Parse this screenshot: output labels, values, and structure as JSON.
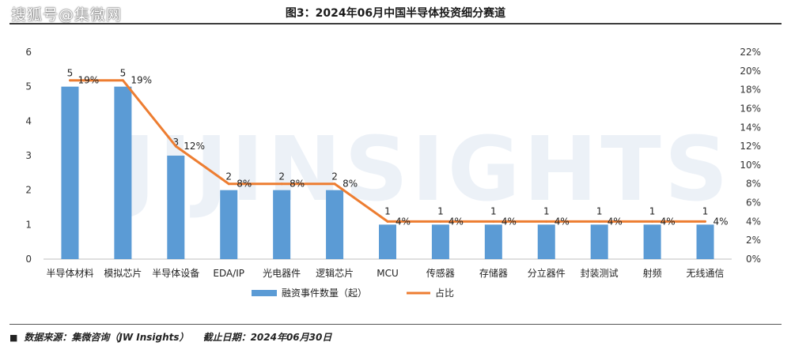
{
  "header": {
    "watermark": "搜狐号@集微网",
    "title": "图3：2024年06月中国半导体投资细分赛道"
  },
  "background_watermark": "JIJINSIGHTS",
  "chart_data": {
    "type": "bar+line",
    "categories": [
      "半导体材料",
      "模拟芯片",
      "半导体设备",
      "EDA/IP",
      "光电器件",
      "逻辑芯片",
      "MCU",
      "传感器",
      "存储器",
      "分立器件",
      "封装测试",
      "射频",
      "无线通信"
    ],
    "series": [
      {
        "name": "融资事件数量（起）",
        "type": "bar",
        "axis": "left",
        "color": "#5b9bd5",
        "values": [
          5,
          5,
          3,
          2,
          2,
          2,
          1,
          1,
          1,
          1,
          1,
          1,
          1
        ]
      },
      {
        "name": "占比",
        "type": "line",
        "axis": "right",
        "color": "#ed7d31",
        "values": [
          19,
          19,
          12,
          8,
          8,
          8,
          4,
          4,
          4,
          4,
          4,
          4,
          4
        ]
      }
    ],
    "bar_labels": [
      "5",
      "5",
      "3",
      "2",
      "2",
      "2",
      "1",
      "1",
      "1",
      "1",
      "1",
      "1",
      "1"
    ],
    "line_labels": [
      "19%",
      "19%",
      "12%",
      "8%",
      "8%",
      "8%",
      "4%",
      "4%",
      "4%",
      "4%",
      "4%",
      "4%",
      "4%"
    ],
    "y_left": {
      "ticks": [
        "0",
        "1",
        "2",
        "3",
        "4",
        "5",
        "6"
      ],
      "min": 0,
      "max": 6
    },
    "y_right": {
      "ticks": [
        "0%",
        "2%",
        "4%",
        "6%",
        "8%",
        "10%",
        "12%",
        "14%",
        "16%",
        "18%",
        "20%",
        "22%"
      ],
      "min": 0,
      "max": 22
    },
    "legend": [
      "融资事件数量（起）",
      "占比"
    ],
    "legend_position": "bottom"
  },
  "footer": {
    "bullet": "■",
    "source": "数据来源：集微咨询（JW Insights）",
    "date": "截止日期：2024年06月30日"
  }
}
